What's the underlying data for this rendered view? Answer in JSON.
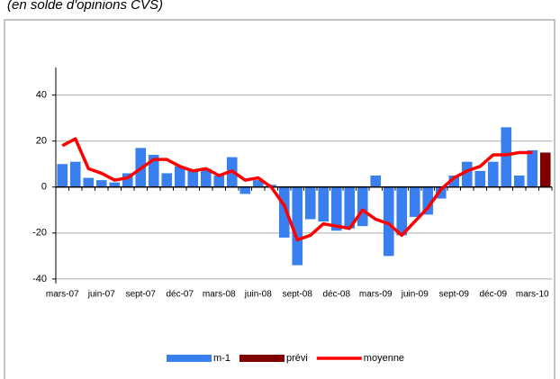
{
  "chart_data": {
    "type": "bar",
    "title": "(en solde d'opinions CVS)",
    "categories": [
      "mars-07",
      null,
      null,
      "juin-07",
      null,
      null,
      "sept-07",
      null,
      null,
      "déc-07",
      null,
      null,
      "mars-08",
      null,
      null,
      "juin-08",
      null,
      null,
      "sept-08",
      null,
      null,
      "déc-08",
      null,
      null,
      "mars-09",
      null,
      null,
      "juin-09",
      null,
      null,
      "sept-09",
      null,
      null,
      "déc-09",
      null,
      null,
      "mars-10",
      null
    ],
    "series": [
      {
        "name": "m-1",
        "color": "#3a7fef",
        "kind": "bar",
        "values": [
          10,
          11,
          4,
          3,
          2,
          6,
          17,
          14,
          6,
          9,
          7,
          8,
          5,
          13,
          -3,
          3,
          1,
          -22,
          -34,
          -14,
          -15,
          -19,
          -18,
          -17,
          5,
          -30,
          -21,
          -13,
          -12,
          -5,
          5,
          11,
          7,
          11,
          26,
          5,
          16,
          null
        ]
      },
      {
        "name": "prévi",
        "color": "#800000",
        "kind": "bar",
        "values": [
          null,
          null,
          null,
          null,
          null,
          null,
          null,
          null,
          null,
          null,
          null,
          null,
          null,
          null,
          null,
          null,
          null,
          null,
          null,
          null,
          null,
          null,
          null,
          null,
          null,
          null,
          null,
          null,
          null,
          null,
          null,
          null,
          null,
          null,
          null,
          null,
          null,
          15
        ]
      },
      {
        "name": "moyenne",
        "color": "#ff0000",
        "kind": "line",
        "values": [
          18,
          21,
          8,
          6,
          3,
          4,
          8,
          12,
          12,
          9,
          7,
          8,
          5,
          7,
          3,
          4,
          0,
          -8,
          -23,
          -21,
          -16,
          -17,
          -18,
          -10,
          -14,
          -16,
          -21,
          -15,
          -9,
          -1,
          4,
          7,
          9,
          14,
          14,
          15,
          15,
          null
        ]
      }
    ],
    "ylim": [
      -42,
      52
    ],
    "yticks": [
      -40,
      -20,
      0,
      20,
      40
    ],
    "grid": true,
    "legend": "bottom"
  }
}
